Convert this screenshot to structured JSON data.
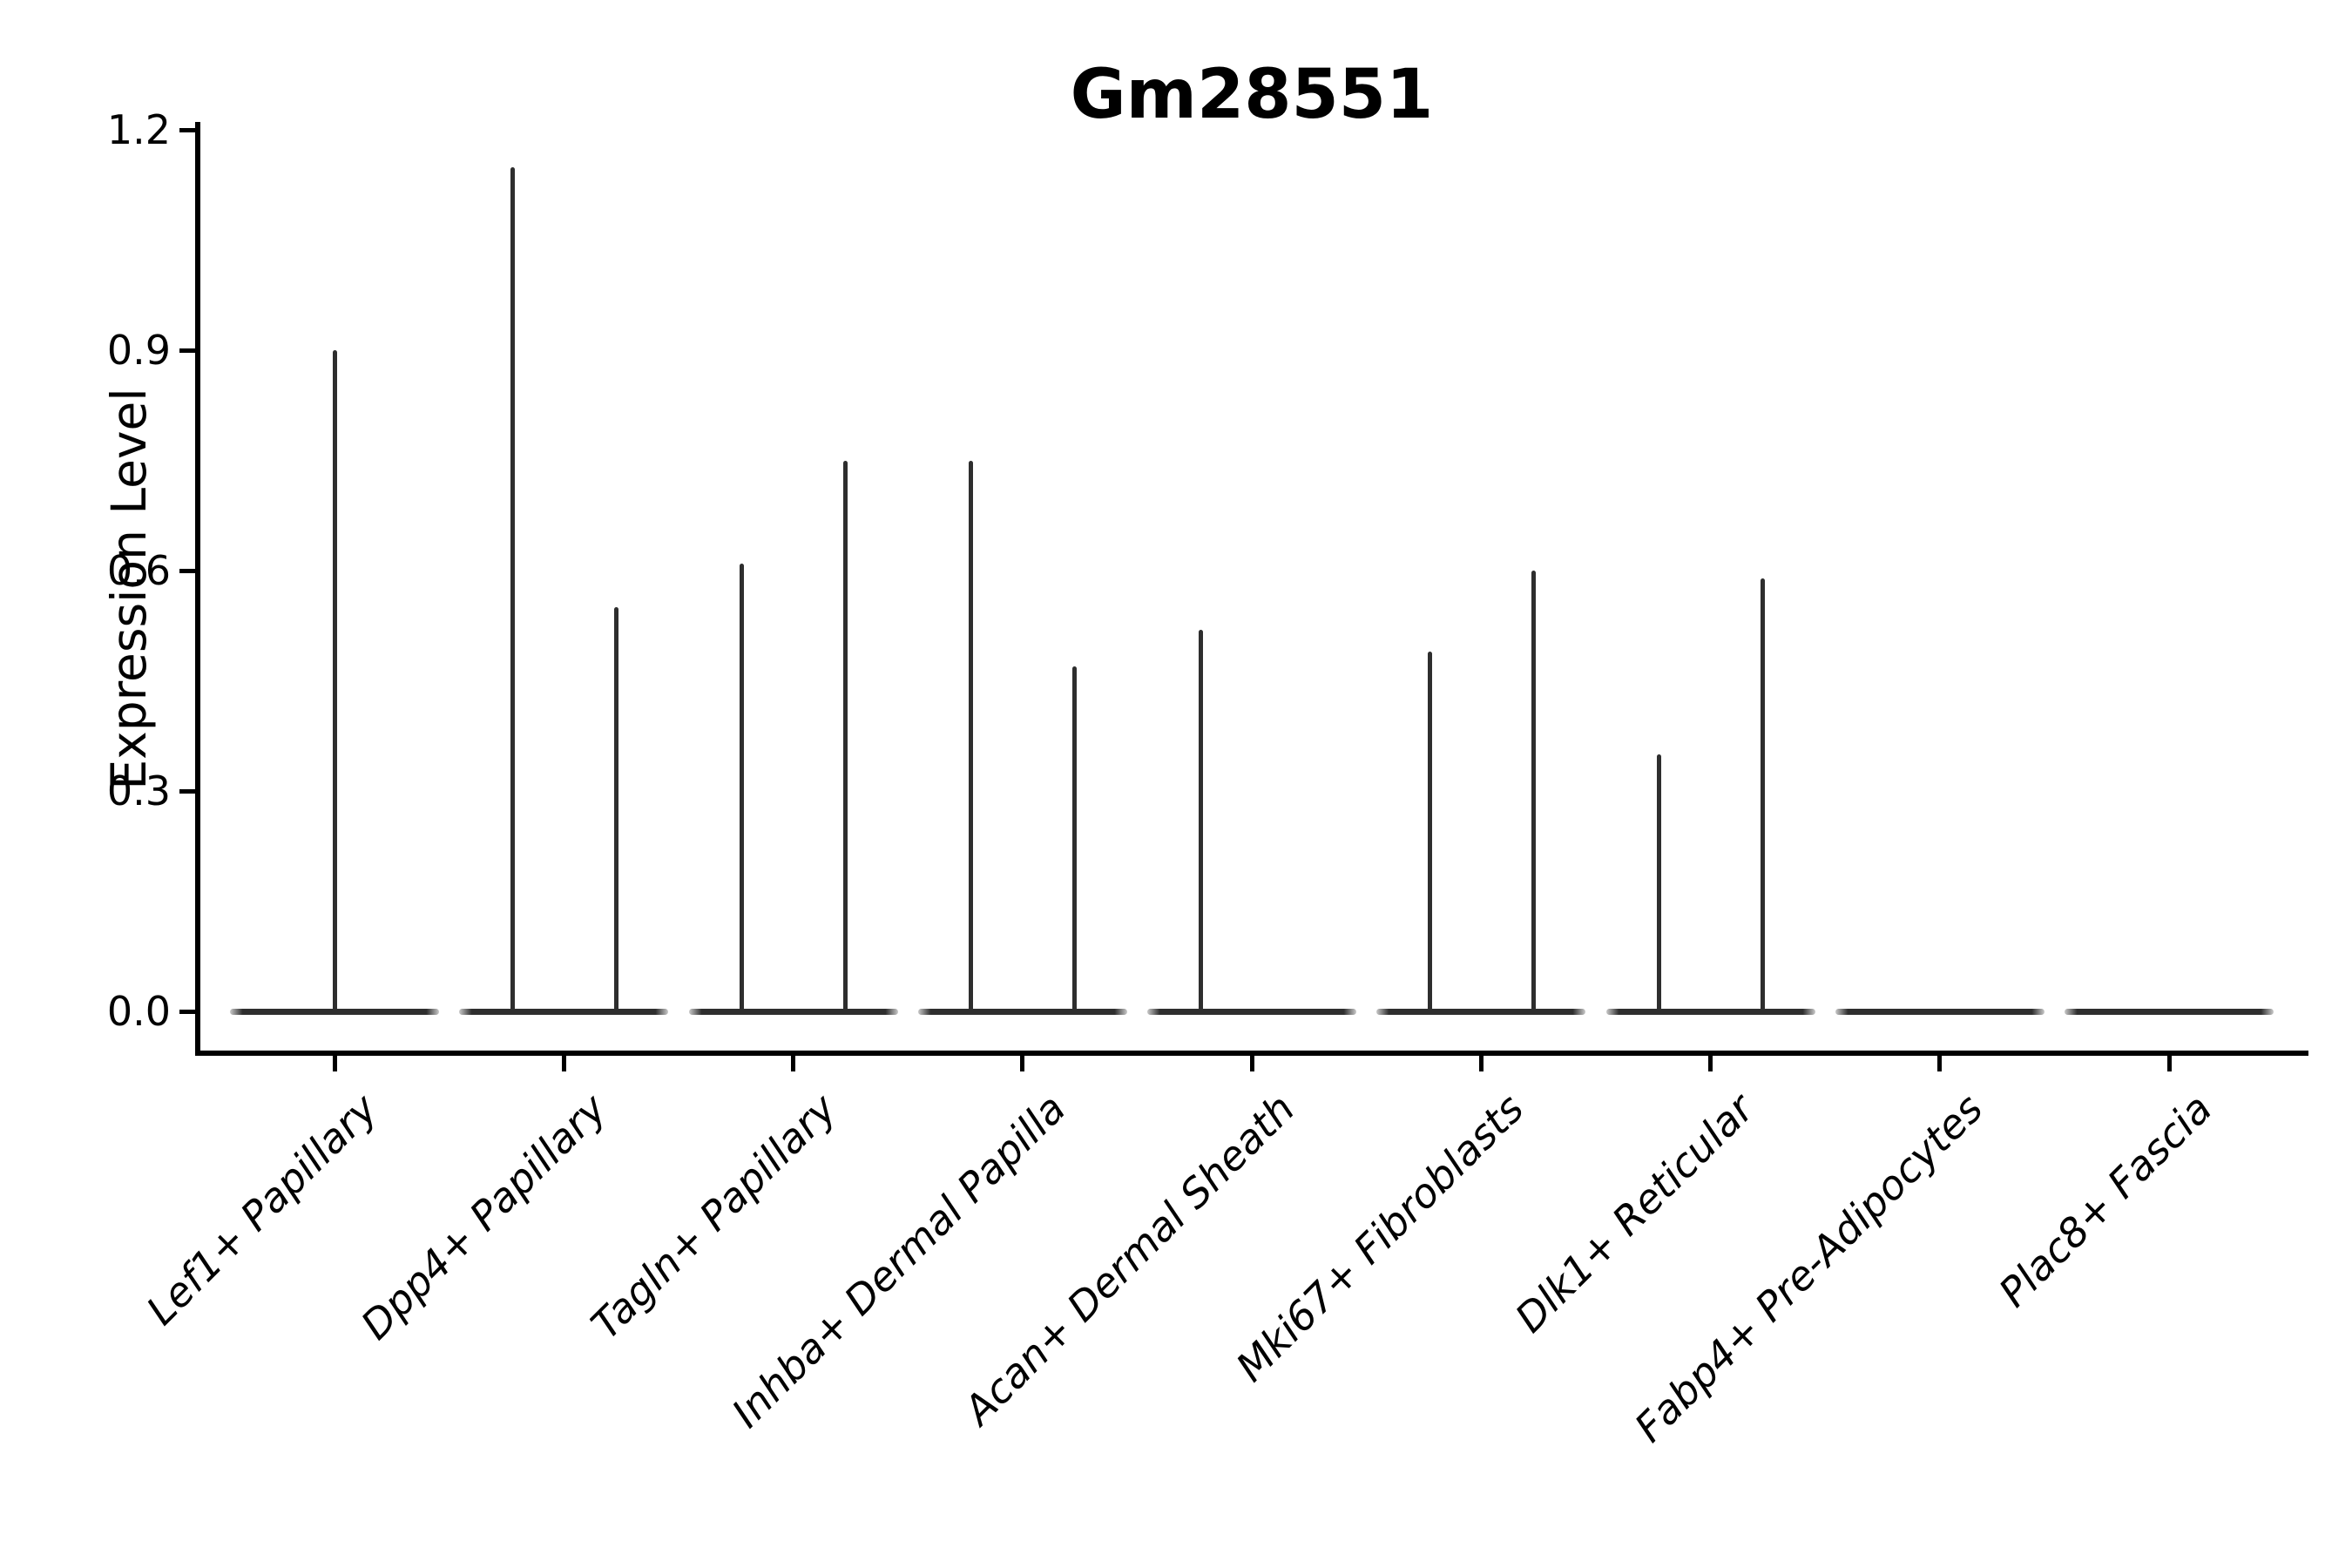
{
  "title": "Gm28551",
  "chart_data": {
    "type": "violin",
    "title": "Gm28551",
    "xlabel": "",
    "ylabel": "Expression Level",
    "yticks": [
      0.0,
      0.3,
      0.6,
      0.9,
      1.2
    ],
    "ylim": [
      0.0,
      1.2
    ],
    "grid": false,
    "legend": "none",
    "description": "Thin spike-like violins; wide flat base at expression 0 for every cell type, narrow vertical spikes reaching the maximum expression values listed per group.",
    "categories": [
      "Lef1+ Papillary",
      "Dpp4+ Papillary",
      "Tagln+ Papillary",
      "Inhba+ Dermal Papilla",
      "Acan+ Dermal Sheath",
      "Mki67+ Fibroblasts",
      "Dlk1+ Reticular",
      "Fabp4+ Pre-Adipocytes",
      "Plac8+ Fascia"
    ],
    "violins": [
      {
        "category": "Lef1+ Papillary",
        "baseline_value": 0.0,
        "spikes": [
          {
            "side": "center",
            "max_value": 0.9
          }
        ]
      },
      {
        "category": "Dpp4+ Papillary",
        "baseline_value": 0.0,
        "spikes": [
          {
            "side": "left",
            "max_value": 1.15
          },
          {
            "side": "right",
            "max_value": 0.55
          }
        ]
      },
      {
        "category": "Tagln+ Papillary",
        "baseline_value": 0.0,
        "spikes": [
          {
            "side": "left",
            "max_value": 0.61
          },
          {
            "side": "right",
            "max_value": 0.75
          }
        ]
      },
      {
        "category": "Inhba+ Dermal Papilla",
        "baseline_value": 0.0,
        "spikes": [
          {
            "side": "left",
            "max_value": 0.75
          },
          {
            "side": "right",
            "max_value": 0.47
          }
        ]
      },
      {
        "category": "Acan+ Dermal Sheath",
        "baseline_value": 0.0,
        "spikes": [
          {
            "side": "left",
            "max_value": 0.52
          }
        ]
      },
      {
        "category": "Mki67+ Fibroblasts",
        "baseline_value": 0.0,
        "spikes": [
          {
            "side": "left",
            "max_value": 0.49
          },
          {
            "side": "right",
            "max_value": 0.6
          }
        ]
      },
      {
        "category": "Dlk1+ Reticular",
        "baseline_value": 0.0,
        "spikes": [
          {
            "side": "left",
            "max_value": 0.35
          },
          {
            "side": "right",
            "max_value": 0.59
          }
        ]
      },
      {
        "category": "Fabp4+ Pre-Adipocytes",
        "baseline_value": 0.0,
        "spikes": []
      },
      {
        "category": "Plac8+ Fascia",
        "baseline_value": 0.0,
        "spikes": []
      }
    ],
    "colors": {
      "violin": "#2e2e2e",
      "axis": "#000000",
      "text": "#000000",
      "background": "#ffffff"
    }
  }
}
